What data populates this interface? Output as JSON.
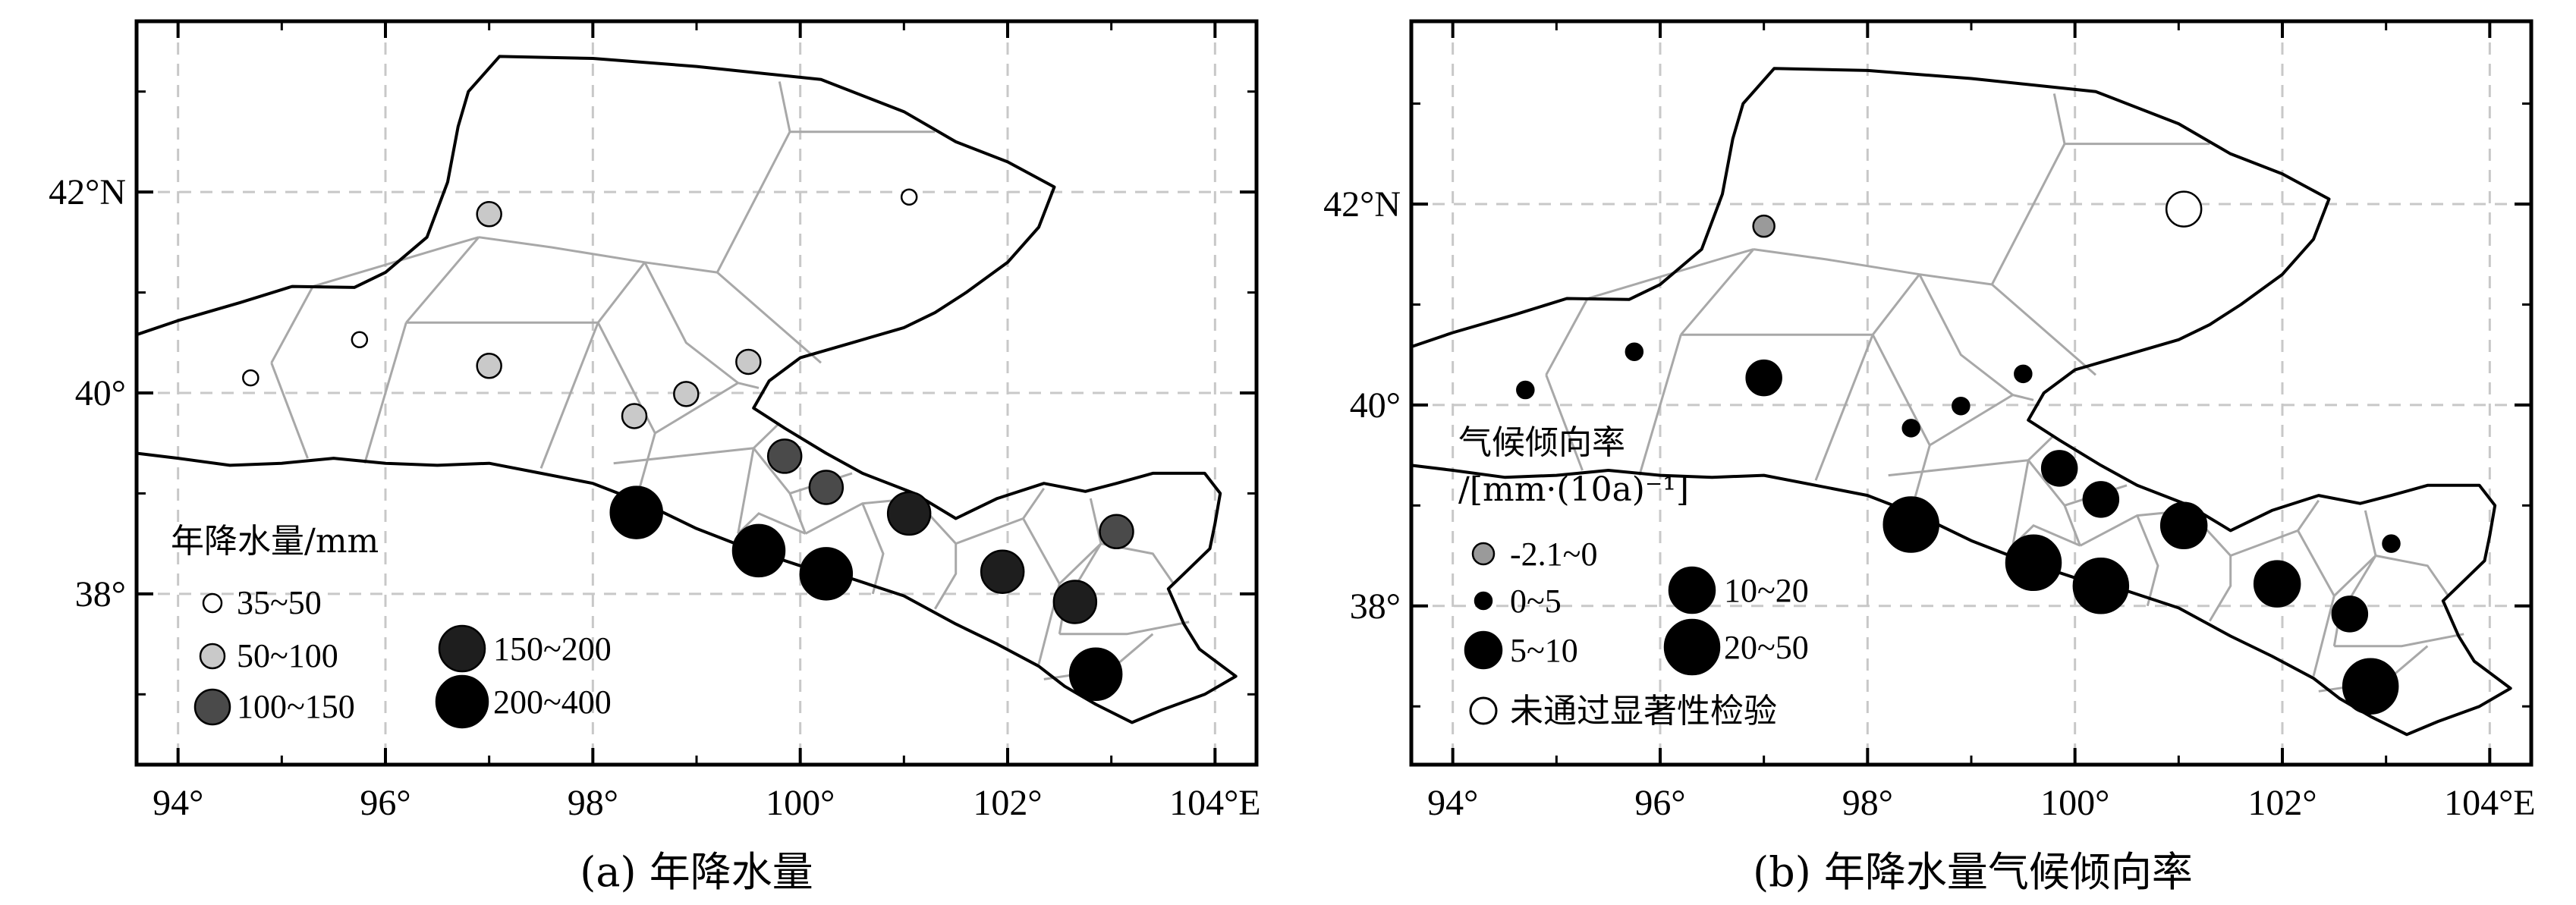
{
  "colors": {
    "frame": "#000000",
    "grid": "#c8c8c8",
    "voronoi": "#a8a8a8",
    "outline": "#000000",
    "class_35_50": "#ffffff",
    "class_50_100": "#c9c9c9",
    "class_100_150": "#4a4a4a",
    "class_150_200": "#1e1e1e",
    "class_200_400": "#000000",
    "trend_negative": "#9a9a9a",
    "trend_positive": "#000000",
    "trend_nonsig": "#ffffff"
  },
  "axes": {
    "lon_ticks": [
      "94°",
      "96°",
      "98°",
      "100°",
      "102°",
      "104°E"
    ],
    "lat_ticks": [
      "42°N",
      "40°",
      "38°"
    ],
    "lon_range": [
      93.6,
      104.4
    ],
    "lat_range": [
      36.3,
      43.7
    ]
  },
  "panel_a": {
    "caption": "(a) 年降水量",
    "legend_title": "年降水量/mm",
    "legend_items": [
      {
        "label": "35~50",
        "class": "class_35_50"
      },
      {
        "label": "50~100",
        "class": "class_50_100"
      },
      {
        "label": "100~150",
        "class": "class_100_150"
      },
      {
        "label": "150~200",
        "class": "class_150_200"
      },
      {
        "label": "200~400",
        "class": "class_200_400"
      }
    ],
    "stations": [
      {
        "lon": 94.7,
        "lat": 40.15,
        "class": "class_35_50"
      },
      {
        "lon": 95.75,
        "lat": 40.53,
        "class": "class_35_50"
      },
      {
        "lon": 101.05,
        "lat": 41.95,
        "class": "class_35_50"
      },
      {
        "lon": 97.0,
        "lat": 41.78,
        "class": "class_50_100"
      },
      {
        "lon": 97.0,
        "lat": 40.27,
        "class": "class_50_100"
      },
      {
        "lon": 98.4,
        "lat": 39.77,
        "class": "class_50_100"
      },
      {
        "lon": 98.9,
        "lat": 39.99,
        "class": "class_50_100"
      },
      {
        "lon": 99.5,
        "lat": 40.31,
        "class": "class_50_100"
      },
      {
        "lon": 99.85,
        "lat": 39.37,
        "class": "class_100_150"
      },
      {
        "lon": 100.25,
        "lat": 39.06,
        "class": "class_100_150"
      },
      {
        "lon": 103.05,
        "lat": 38.62,
        "class": "class_100_150"
      },
      {
        "lon": 101.05,
        "lat": 38.8,
        "class": "class_150_200"
      },
      {
        "lon": 101.95,
        "lat": 38.22,
        "class": "class_150_200"
      },
      {
        "lon": 102.65,
        "lat": 37.92,
        "class": "class_150_200"
      },
      {
        "lon": 98.42,
        "lat": 38.81,
        "class": "class_200_400"
      },
      {
        "lon": 99.6,
        "lat": 38.43,
        "class": "class_200_400"
      },
      {
        "lon": 100.25,
        "lat": 38.2,
        "class": "class_200_400"
      },
      {
        "lon": 102.85,
        "lat": 37.2,
        "class": "class_200_400"
      }
    ]
  },
  "panel_b": {
    "caption": "(b) 年降水量气候倾向率",
    "legend_title_line1": "气候倾向率",
    "legend_title_line2": "/[mm·(10a)⁻¹]",
    "legend_items": [
      {
        "label": "-2.1~0",
        "size": "small",
        "fill": "trend_negative"
      },
      {
        "label": "0~5",
        "size": "tiny",
        "fill": "trend_positive"
      },
      {
        "label": "5~10",
        "size": "medium",
        "fill": "trend_positive"
      },
      {
        "label": "10~20",
        "size": "large",
        "fill": "trend_positive"
      },
      {
        "label": "20~50",
        "size": "xlarge",
        "fill": "trend_positive"
      },
      {
        "label": "未通过显著性检验",
        "size": "medium",
        "fill": "trend_nonsig"
      }
    ],
    "stations": [
      {
        "lon": 97.0,
        "lat": 41.78,
        "size": "small",
        "fill": "trend_negative"
      },
      {
        "lon": 101.05,
        "lat": 41.95,
        "size": "medium",
        "fill": "trend_nonsig"
      },
      {
        "lon": 94.7,
        "lat": 40.15,
        "size": "tiny",
        "fill": "trend_positive"
      },
      {
        "lon": 95.75,
        "lat": 40.53,
        "size": "tiny",
        "fill": "trend_positive"
      },
      {
        "lon": 98.42,
        "lat": 39.77,
        "size": "tiny",
        "fill": "trend_positive"
      },
      {
        "lon": 98.9,
        "lat": 39.99,
        "size": "tiny",
        "fill": "trend_positive"
      },
      {
        "lon": 99.5,
        "lat": 40.31,
        "size": "tiny",
        "fill": "trend_positive"
      },
      {
        "lon": 103.05,
        "lat": 38.62,
        "size": "tiny",
        "fill": "trend_positive"
      },
      {
        "lon": 97.0,
        "lat": 40.27,
        "size": "medium",
        "fill": "trend_positive"
      },
      {
        "lon": 99.85,
        "lat": 39.37,
        "size": "medium",
        "fill": "trend_positive"
      },
      {
        "lon": 100.25,
        "lat": 39.06,
        "size": "medium",
        "fill": "trend_positive"
      },
      {
        "lon": 102.65,
        "lat": 37.92,
        "size": "medium",
        "fill": "trend_positive"
      },
      {
        "lon": 101.05,
        "lat": 38.8,
        "size": "large",
        "fill": "trend_positive"
      },
      {
        "lon": 101.95,
        "lat": 38.22,
        "size": "large",
        "fill": "trend_positive"
      },
      {
        "lon": 98.42,
        "lat": 38.81,
        "size": "xlarge",
        "fill": "trend_positive"
      },
      {
        "lon": 99.6,
        "lat": 38.43,
        "size": "xlarge",
        "fill": "trend_positive"
      },
      {
        "lon": 100.25,
        "lat": 38.2,
        "size": "xlarge",
        "fill": "trend_positive"
      },
      {
        "lon": 102.85,
        "lat": 37.2,
        "size": "xlarge",
        "fill": "trend_positive"
      }
    ]
  }
}
